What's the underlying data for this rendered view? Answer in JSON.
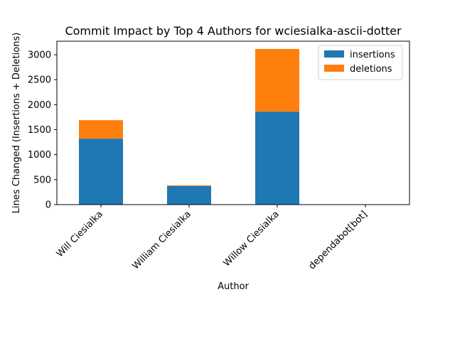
{
  "chart_data": {
    "type": "bar",
    "stacked": true,
    "title": "Commit Impact by Top 4 Authors for wciesialka-ascii-dotter",
    "xlabel": "Author",
    "ylabel": "Lines Changed (Insertions + Deletions)",
    "categories": [
      "Will Ciesialka",
      "William Ciesialka",
      "Willow Ciesialka",
      "dependabot[bot]"
    ],
    "series": [
      {
        "name": "insertions",
        "color": "#1f77b4",
        "values": [
          1320,
          370,
          1860,
          0
        ]
      },
      {
        "name": "deletions",
        "color": "#ff7f0e",
        "values": [
          370,
          15,
          1255,
          0
        ]
      }
    ],
    "ylim": [
      0,
      3270
    ],
    "yticks": [
      0,
      500,
      1000,
      1500,
      2000,
      2500,
      3000
    ],
    "grid": false,
    "legend_position": "top-right"
  }
}
